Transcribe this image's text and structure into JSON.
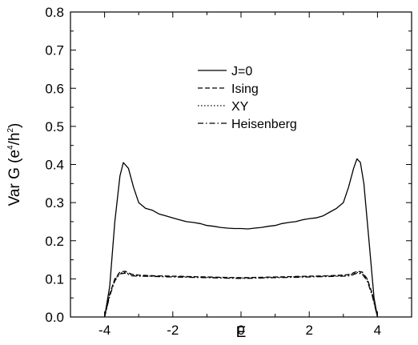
{
  "chart_data": {
    "type": "line",
    "xlabel": "E",
    "ylabel": {
      "prefix": "Var G (e",
      "sup1": "4",
      "mid": "/h",
      "sup2": "2",
      "suffix": ")"
    },
    "xlim": [
      -5,
      5
    ],
    "ylim": [
      0.0,
      0.8
    ],
    "x_ticks": [
      -4,
      -2,
      0,
      2,
      4
    ],
    "y_ticks": [
      0.0,
      0.1,
      0.2,
      0.3,
      0.4,
      0.5,
      0.6,
      0.7,
      0.8
    ],
    "x_tick_labels": [
      "-4",
      "-2",
      "0",
      "2",
      "4"
    ],
    "y_tick_labels": [
      "0.0",
      "0.1",
      "0.2",
      "0.3",
      "0.4",
      "0.5",
      "0.6",
      "0.7",
      "0.8"
    ],
    "grid": false,
    "legend_position": "upper-center",
    "series": [
      {
        "name": "J=0",
        "line_style": "solid",
        "x": [
          -4.0,
          -3.85,
          -3.7,
          -3.55,
          -3.45,
          -3.3,
          -3.15,
          -3.0,
          -2.8,
          -2.6,
          -2.4,
          -2.2,
          -2.0,
          -1.8,
          -1.6,
          -1.4,
          -1.2,
          -1.0,
          -0.8,
          -0.6,
          -0.4,
          -0.2,
          0.0,
          0.2,
          0.4,
          0.6,
          0.8,
          1.0,
          1.2,
          1.4,
          1.6,
          1.8,
          2.0,
          2.2,
          2.4,
          2.6,
          2.8,
          3.0,
          3.15,
          3.3,
          3.4,
          3.5,
          3.6,
          3.75,
          3.9,
          4.0
        ],
        "y": [
          0.0,
          0.08,
          0.25,
          0.37,
          0.405,
          0.39,
          0.34,
          0.3,
          0.285,
          0.28,
          0.27,
          0.265,
          0.26,
          0.255,
          0.25,
          0.248,
          0.245,
          0.24,
          0.238,
          0.235,
          0.233,
          0.232,
          0.232,
          0.231,
          0.233,
          0.235,
          0.238,
          0.24,
          0.245,
          0.248,
          0.25,
          0.255,
          0.258,
          0.26,
          0.265,
          0.275,
          0.285,
          0.3,
          0.34,
          0.39,
          0.415,
          0.405,
          0.35,
          0.2,
          0.05,
          0.0
        ]
      },
      {
        "name": "Ising",
        "line_style": "dashed",
        "x": [
          -4.0,
          -3.85,
          -3.7,
          -3.55,
          -3.4,
          -3.2,
          -3.0,
          -2.5,
          -2.0,
          -1.5,
          -1.0,
          -0.5,
          0.0,
          0.5,
          1.0,
          1.5,
          2.0,
          2.5,
          3.0,
          3.2,
          3.4,
          3.55,
          3.7,
          3.85,
          4.0
        ],
        "y": [
          0.0,
          0.06,
          0.1,
          0.118,
          0.12,
          0.112,
          0.11,
          0.108,
          0.107,
          0.106,
          0.105,
          0.104,
          0.103,
          0.104,
          0.105,
          0.106,
          0.107,
          0.108,
          0.11,
          0.112,
          0.12,
          0.118,
          0.1,
          0.06,
          0.0
        ]
      },
      {
        "name": "XY",
        "line_style": "dotted",
        "x": [
          -4.0,
          -3.85,
          -3.7,
          -3.55,
          -3.4,
          -3.2,
          -3.0,
          -2.5,
          -2.0,
          -1.5,
          -1.0,
          -0.5,
          0.0,
          0.5,
          1.0,
          1.5,
          2.0,
          2.5,
          3.0,
          3.2,
          3.4,
          3.55,
          3.7,
          3.85,
          4.0
        ],
        "y": [
          0.0,
          0.058,
          0.098,
          0.115,
          0.117,
          0.11,
          0.108,
          0.107,
          0.106,
          0.105,
          0.104,
          0.103,
          0.102,
          0.103,
          0.104,
          0.105,
          0.106,
          0.107,
          0.108,
          0.11,
          0.117,
          0.115,
          0.098,
          0.058,
          0.0
        ]
      },
      {
        "name": "Heisenberg",
        "line_style": "dashdot",
        "x": [
          -4.0,
          -3.85,
          -3.7,
          -3.55,
          -3.4,
          -3.2,
          -3.0,
          -2.5,
          -2.0,
          -1.5,
          -1.0,
          -0.5,
          0.0,
          0.5,
          1.0,
          1.5,
          2.0,
          2.5,
          3.0,
          3.2,
          3.4,
          3.55,
          3.7,
          3.85,
          4.0
        ],
        "y": [
          0.0,
          0.055,
          0.095,
          0.113,
          0.115,
          0.108,
          0.107,
          0.106,
          0.105,
          0.104,
          0.103,
          0.102,
          0.101,
          0.102,
          0.103,
          0.104,
          0.105,
          0.106,
          0.107,
          0.108,
          0.115,
          0.113,
          0.095,
          0.055,
          0.0
        ]
      }
    ]
  }
}
